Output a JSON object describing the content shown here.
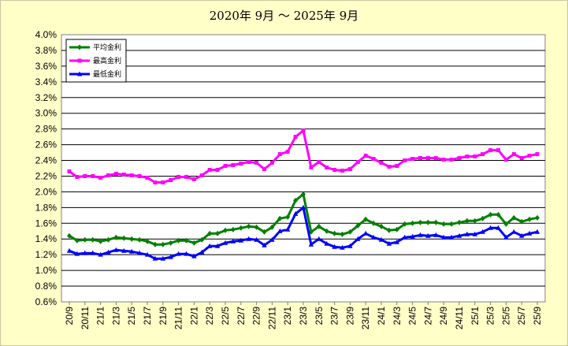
{
  "chart_data": {
    "type": "line",
    "title": "2020年 9月 ～ 2025年 9月",
    "xlabel": "",
    "ylabel": "",
    "ylim": [
      0.6,
      4.0
    ],
    "ytick_step": 0.2,
    "ytick_labels": [
      "0.6%",
      "0.8%",
      "1.0%",
      "1.2%",
      "1.4%",
      "1.6%",
      "1.8%",
      "2.0%",
      "2.2%",
      "2.4%",
      "2.6%",
      "2.8%",
      "3.0%",
      "3.2%",
      "3.4%",
      "3.6%",
      "3.8%",
      "4.0%"
    ],
    "x": [
      "20/9",
      "20/10",
      "20/11",
      "20/12",
      "21/1",
      "21/2",
      "21/3",
      "21/4",
      "21/5",
      "21/6",
      "21/7",
      "21/8",
      "21/9",
      "21/10",
      "21/11",
      "21/12",
      "22/1",
      "22/2",
      "22/3",
      "22/4",
      "22/5",
      "22/6",
      "22/7",
      "22/8",
      "22/9",
      "22/10",
      "22/11",
      "22/12",
      "23/1",
      "23/2",
      "23/3",
      "23/4",
      "23/5",
      "23/6",
      "23/7",
      "23/8",
      "23/9",
      "23/10",
      "23/11",
      "23/12",
      "24/1",
      "24/2",
      "24/3",
      "24/4",
      "24/5",
      "24/6",
      "24/7",
      "24/8",
      "24/9",
      "24/10",
      "24/11",
      "24/12",
      "25/1",
      "25/2",
      "25/3",
      "25/4",
      "25/5",
      "25/6",
      "25/7",
      "25/8",
      "25/9"
    ],
    "xtick_labels": [
      "20/9",
      "20/11",
      "21/1",
      "21/3",
      "21/5",
      "21/7",
      "21/9",
      "21/11",
      "22/1",
      "22/3",
      "22/5",
      "22/7",
      "22/9",
      "22/11",
      "23/1",
      "23/3",
      "23/5",
      "23/7",
      "23/9",
      "23/11",
      "24/1",
      "24/3",
      "24/5",
      "24/7",
      "24/9",
      "24/11",
      "25/1",
      "25/3",
      "25/5",
      "25/7",
      "25/9"
    ],
    "grid": true,
    "legend_position": "top-left",
    "series": [
      {
        "name": "平均金利",
        "color": "#008000",
        "marker": "diamond",
        "values": [
          1.44,
          1.38,
          1.39,
          1.39,
          1.37,
          1.39,
          1.42,
          1.41,
          1.4,
          1.39,
          1.37,
          1.33,
          1.33,
          1.35,
          1.38,
          1.38,
          1.35,
          1.39,
          1.47,
          1.47,
          1.51,
          1.52,
          1.54,
          1.56,
          1.55,
          1.49,
          1.55,
          1.66,
          1.68,
          1.89,
          1.97,
          1.49,
          1.56,
          1.5,
          1.47,
          1.46,
          1.49,
          1.57,
          1.65,
          1.6,
          1.56,
          1.51,
          1.52,
          1.59,
          1.6,
          1.61,
          1.61,
          1.61,
          1.59,
          1.59,
          1.61,
          1.63,
          1.63,
          1.66,
          1.71,
          1.71,
          1.59,
          1.67,
          1.62,
          1.65,
          1.67
        ]
      },
      {
        "name": "最高金利",
        "color": "#ff00ff",
        "marker": "square",
        "values": [
          2.26,
          2.19,
          2.2,
          2.2,
          2.18,
          2.21,
          2.23,
          2.22,
          2.21,
          2.2,
          2.18,
          2.12,
          2.12,
          2.15,
          2.19,
          2.19,
          2.16,
          2.21,
          2.28,
          2.28,
          2.33,
          2.34,
          2.36,
          2.38,
          2.37,
          2.29,
          2.37,
          2.48,
          2.51,
          2.7,
          2.78,
          2.31,
          2.38,
          2.31,
          2.28,
          2.27,
          2.29,
          2.38,
          2.46,
          2.42,
          2.37,
          2.32,
          2.33,
          2.4,
          2.42,
          2.43,
          2.43,
          2.43,
          2.41,
          2.41,
          2.43,
          2.45,
          2.45,
          2.48,
          2.53,
          2.53,
          2.41,
          2.48,
          2.43,
          2.46,
          2.48
        ]
      },
      {
        "name": "最低金利",
        "color": "#0000ff",
        "marker": "triangle",
        "values": [
          1.25,
          1.21,
          1.22,
          1.22,
          1.2,
          1.23,
          1.26,
          1.25,
          1.24,
          1.22,
          1.2,
          1.15,
          1.15,
          1.17,
          1.21,
          1.21,
          1.18,
          1.23,
          1.31,
          1.31,
          1.35,
          1.37,
          1.38,
          1.4,
          1.39,
          1.32,
          1.39,
          1.5,
          1.52,
          1.72,
          1.8,
          1.33,
          1.4,
          1.34,
          1.3,
          1.29,
          1.31,
          1.4,
          1.47,
          1.42,
          1.39,
          1.34,
          1.36,
          1.42,
          1.43,
          1.45,
          1.44,
          1.45,
          1.42,
          1.42,
          1.44,
          1.46,
          1.46,
          1.49,
          1.54,
          1.54,
          1.42,
          1.49,
          1.44,
          1.47,
          1.49
        ]
      }
    ]
  }
}
